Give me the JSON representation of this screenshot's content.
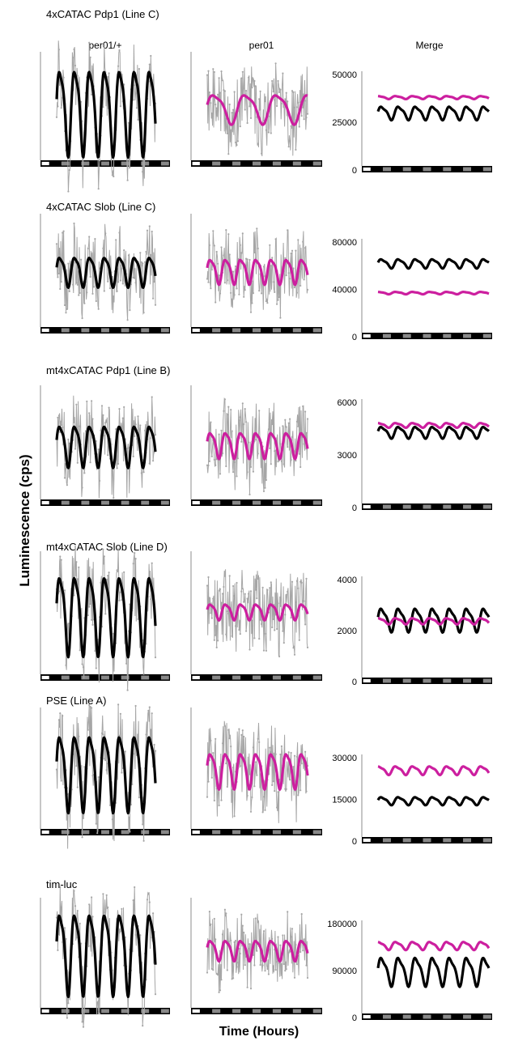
{
  "figure": {
    "ylabel": "Luminescence (cps)",
    "xlabel": "Time (Hours)",
    "column_headers": [
      "per01/+",
      "per01",
      "Merge"
    ]
  },
  "colors": {
    "black_trace": "#000000",
    "magenta_trace": "#cc1f9f",
    "raw_trace": "#a6a6a6",
    "axis": "#8c8c8c",
    "bar_dark": "#000000",
    "bar_light": "#888888"
  },
  "light_dark_bar": {
    "segments": 13,
    "first_segment": "white"
  },
  "chart_data": [
    {
      "type": "line",
      "row_title": "4xCATAC Pdp1 (Line C)",
      "panel": "per01/+",
      "series": [
        {
          "color": "black",
          "amplitude": 0.35,
          "period_days": 1
        }
      ],
      "raw_noise": true
    },
    {
      "type": "line",
      "row_title": "4xCATAC Pdp1 (Line C)",
      "panel": "per01",
      "series": [
        {
          "color": "magenta",
          "amplitude": 0.12,
          "period_days": 2
        }
      ],
      "raw_noise": true
    },
    {
      "type": "line",
      "row_title": "4xCATAC Pdp1 (Line C)",
      "panel": "Merge",
      "yticks": [
        "0",
        "25000",
        "50000"
      ],
      "ylim": [
        0,
        50000
      ],
      "series": [
        {
          "color": "black",
          "mean": 30000,
          "amplitude": 3200
        },
        {
          "color": "magenta",
          "mean": 38000,
          "amplitude": 700
        }
      ]
    },
    {
      "type": "line",
      "row_title": "4xCATAC Slob (Line C)",
      "panel": "per01/+",
      "series": [
        {
          "color": "black",
          "amplitude": 0.12,
          "period_days": 1
        }
      ],
      "raw_noise": true
    },
    {
      "type": "line",
      "row_title": "4xCATAC Slob (Line C)",
      "panel": "per01",
      "series": [
        {
          "color": "magenta",
          "amplitude": 0.1,
          "period_days": 1
        }
      ],
      "raw_noise": true
    },
    {
      "type": "line",
      "row_title": "4xCATAC Slob (Line C)",
      "panel": "Merge",
      "yticks": [
        "0",
        "40000",
        "80000"
      ],
      "ylim": [
        0,
        80000
      ],
      "series": [
        {
          "color": "black",
          "mean": 62000,
          "amplitude": 3500
        },
        {
          "color": "magenta",
          "mean": 37000,
          "amplitude": 900
        }
      ]
    },
    {
      "type": "line",
      "row_title": "mt4xCATAC Pdp1 (Line B)",
      "panel": "per01/+",
      "series": [
        {
          "color": "black",
          "amplitude": 0.16,
          "period_days": 1
        }
      ],
      "raw_noise": true
    },
    {
      "type": "line",
      "row_title": "mt4xCATAC Pdp1 (Line B)",
      "panel": "per01",
      "series": [
        {
          "color": "magenta",
          "amplitude": 0.1,
          "period_days": 1
        }
      ],
      "raw_noise": true
    },
    {
      "type": "line",
      "row_title": "mt4xCATAC Pdp1 (Line B)",
      "panel": "Merge",
      "yticks": [
        "0",
        "3000",
        "6000"
      ],
      "ylim": [
        0,
        6000
      ],
      "series": [
        {
          "color": "black",
          "mean": 4300,
          "amplitude": 300
        },
        {
          "color": "magenta",
          "mean": 4700,
          "amplitude": 120
        }
      ]
    },
    {
      "type": "line",
      "row_title": "mt4xCATAC Slob (Line D)",
      "panel": "per01/+",
      "series": [
        {
          "color": "black",
          "amplitude": 0.3,
          "period_days": 1
        }
      ],
      "raw_noise": true
    },
    {
      "type": "line",
      "row_title": "mt4xCATAC Slob (Line D)",
      "panel": "per01",
      "series": [
        {
          "color": "magenta",
          "amplitude": 0.06,
          "period_days": 1
        }
      ],
      "raw_noise": true
    },
    {
      "type": "line",
      "row_title": "mt4xCATAC Slob (Line D)",
      "panel": "Merge",
      "yticks": [
        "0",
        "2000",
        "4000"
      ],
      "ylim": [
        0,
        4000
      ],
      "series": [
        {
          "color": "black",
          "mean": 2450,
          "amplitude": 420
        },
        {
          "color": "magenta",
          "mean": 2380,
          "amplitude": 110
        }
      ]
    },
    {
      "type": "line",
      "row_title": "PSE (Line A)",
      "panel": "per01/+",
      "series": [
        {
          "color": "black",
          "amplitude": 0.28,
          "period_days": 1
        }
      ],
      "raw_noise": true
    },
    {
      "type": "line",
      "row_title": "PSE (Line A)",
      "panel": "per01",
      "series": [
        {
          "color": "magenta",
          "amplitude": 0.13,
          "period_days": 1
        }
      ],
      "raw_noise": true
    },
    {
      "type": "line",
      "row_title": "PSE (Line A)",
      "panel": "Merge",
      "yticks": [
        "0",
        "15000",
        "30000"
      ],
      "ylim": [
        0,
        30000
      ],
      "series": [
        {
          "color": "black",
          "mean": 14500,
          "amplitude": 1300
        },
        {
          "color": "magenta",
          "mean": 25500,
          "amplitude": 1400
        }
      ]
    },
    {
      "type": "line",
      "row_title": "tim-luc",
      "panel": "per01/+",
      "series": [
        {
          "color": "black",
          "amplitude": 0.36,
          "period_days": 1
        }
      ],
      "raw_noise": true
    },
    {
      "type": "line",
      "row_title": "tim-luc",
      "panel": "per01",
      "series": [
        {
          "color": "magenta",
          "amplitude": 0.09,
          "period_days": 1
        }
      ],
      "raw_noise": true
    },
    {
      "type": "line",
      "row_title": "tim-luc",
      "panel": "Merge",
      "yticks": [
        "0",
        "90000",
        "180000"
      ],
      "ylim": [
        0,
        180000
      ],
      "series": [
        {
          "color": "black",
          "mean": 90000,
          "amplitude": 25000
        },
        {
          "color": "magenta",
          "mean": 138000,
          "amplitude": 7000
        }
      ]
    }
  ]
}
